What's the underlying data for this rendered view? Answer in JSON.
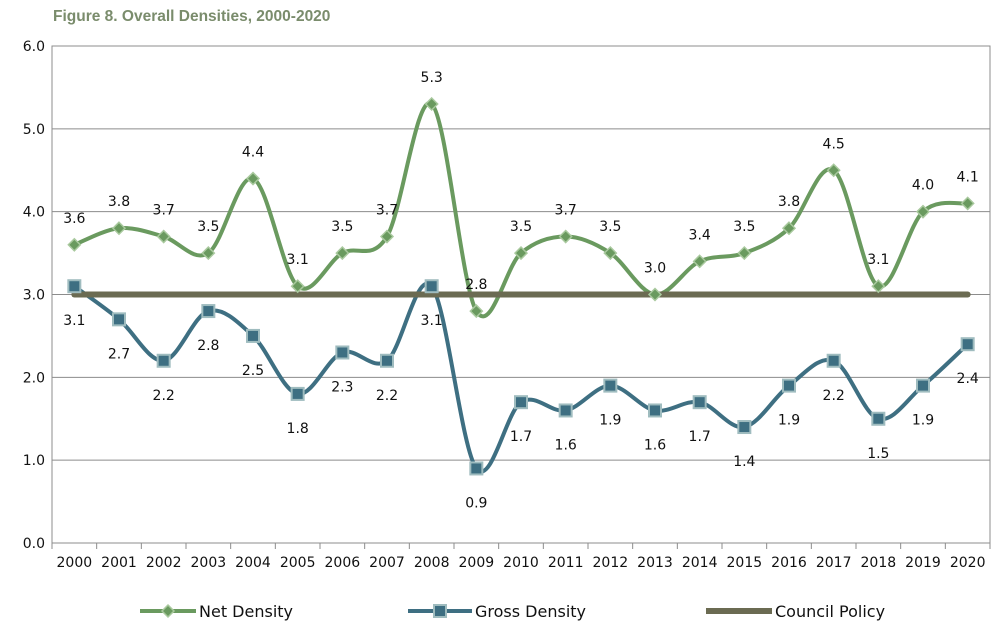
{
  "chart_data": {
    "type": "line",
    "title": "Figure 8. Overall Densities, 2000-2020",
    "xlabel": "",
    "ylabel": "",
    "ylim": [
      0,
      6
    ],
    "yticks": [
      "0.0",
      "1.0",
      "2.0",
      "3.0",
      "4.0",
      "5.0",
      "6.0"
    ],
    "grid": true,
    "legend": "bottom",
    "categories": [
      "2000",
      "2001",
      "2002",
      "2003",
      "2004",
      "2005",
      "2006",
      "2007",
      "2008",
      "2009",
      "2010",
      "2011",
      "2012",
      "2013",
      "2014",
      "2015",
      "2016",
      "2017",
      "2018",
      "2019",
      "2020"
    ],
    "series": [
      {
        "name": "Net Density",
        "color": "#6a9a5f",
        "marker": "diamond",
        "values": [
          3.6,
          3.8,
          3.7,
          3.5,
          4.4,
          3.1,
          3.5,
          3.7,
          5.3,
          2.8,
          3.5,
          3.7,
          3.5,
          3.0,
          3.4,
          3.5,
          3.8,
          4.5,
          3.1,
          4.0,
          4.1
        ],
        "labels": [
          "3.6",
          "3.8",
          "3.7",
          "3.5",
          "4.4",
          "3.1",
          "3.5",
          "3.7",
          "5.3",
          "2.8",
          "3.5",
          "3.7",
          "3.5",
          "3.0",
          "3.4",
          "3.5",
          "3.8",
          "4.5",
          "3.1",
          "4.0",
          "4.1"
        ]
      },
      {
        "name": "Gross Density",
        "color": "#3e6f82",
        "marker": "square",
        "values": [
          3.1,
          2.7,
          2.2,
          2.8,
          2.5,
          1.8,
          2.3,
          2.2,
          3.1,
          0.9,
          1.7,
          1.6,
          1.9,
          1.6,
          1.7,
          1.4,
          1.9,
          2.2,
          1.5,
          1.9,
          2.4
        ],
        "labels": [
          "3.1",
          "2.7",
          "2.2",
          "2.8",
          "2.5",
          "1.8",
          "2.3",
          "2.2",
          "3.1",
          "0.9",
          "1.7",
          "1.6",
          "1.9",
          "1.6",
          "1.7",
          "1.4",
          "1.9",
          "2.2",
          "1.5",
          "1.9",
          "2.4"
        ]
      },
      {
        "name": "Council Policy",
        "color": "#6b6b52",
        "marker": "none",
        "values": [
          3,
          3,
          3,
          3,
          3,
          3,
          3,
          3,
          3,
          3,
          3,
          3,
          3,
          3,
          3,
          3,
          3,
          3,
          3,
          3,
          3
        ]
      }
    ]
  }
}
